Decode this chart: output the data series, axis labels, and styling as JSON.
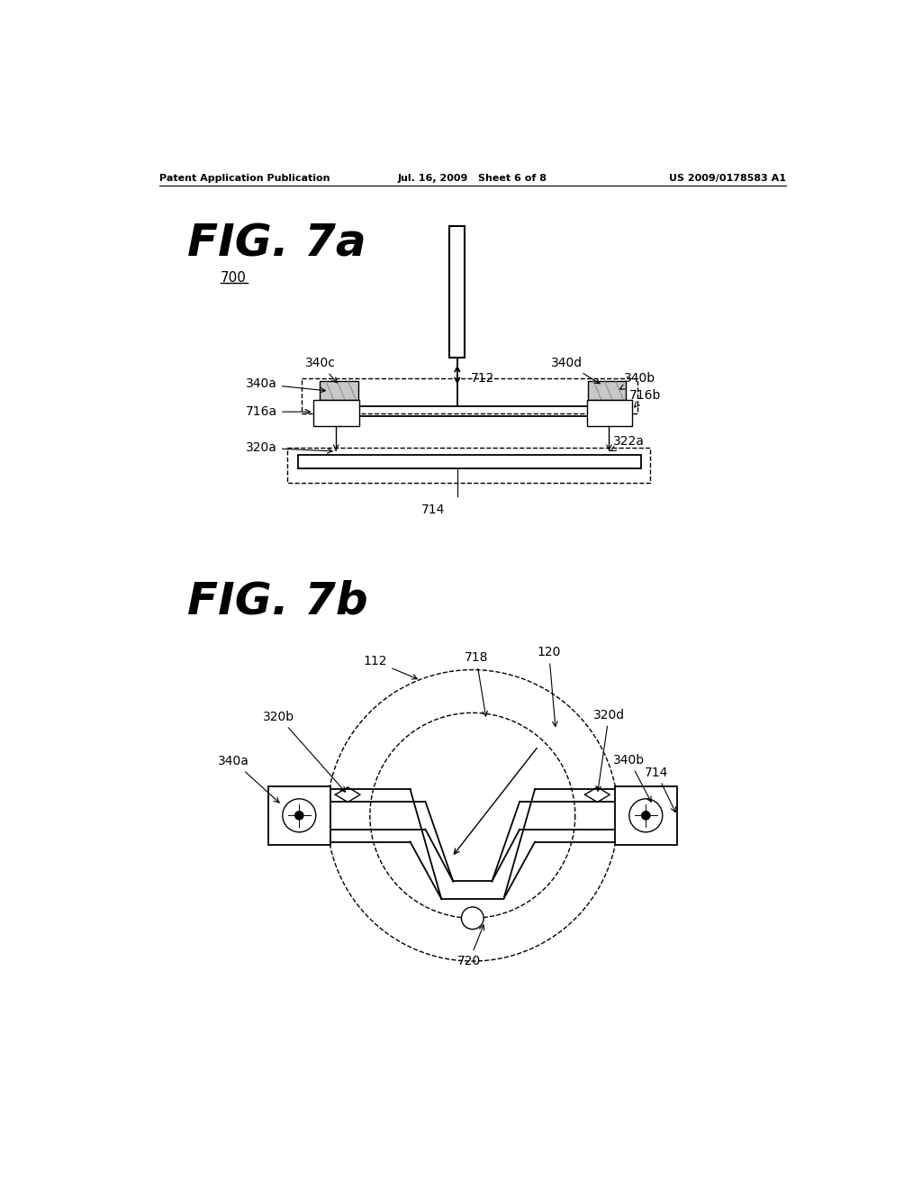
{
  "header_left": "Patent Application Publication",
  "header_mid": "Jul. 16, 2009   Sheet 6 of 8",
  "header_right": "US 2009/0178583 A1",
  "fig7a_title": "FIG. 7a",
  "fig7b_title": "FIG. 7b",
  "bg_color": "#ffffff",
  "line_color": "#000000",
  "gray_fill": "#c8c8c8"
}
